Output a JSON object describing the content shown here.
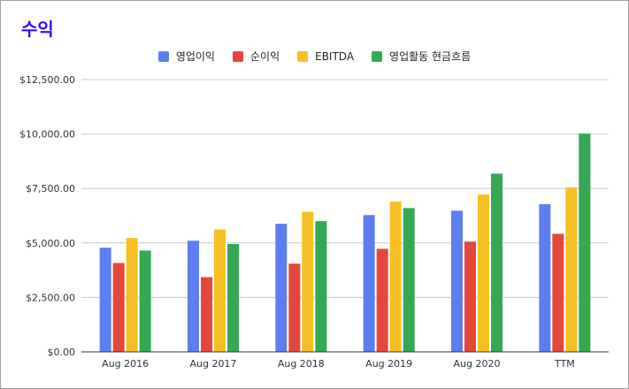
{
  "colors": {
    "title": "#3d00ff",
    "series": [
      "#5b7ff0",
      "#e5473b",
      "#f5c023",
      "#34a853"
    ],
    "grid": "#cccccc",
    "axis": "#333333"
  },
  "chart_data": {
    "type": "bar",
    "title": "수익",
    "categories": [
      "Aug 2016",
      "Aug 2017",
      "Aug 2018",
      "Aug 2019",
      "Aug 2020",
      "TTM"
    ],
    "series": [
      {
        "name": "영업이익",
        "values": [
          4780,
          5100,
          5880,
          6280,
          6480,
          6780
        ]
      },
      {
        "name": "순이익",
        "values": [
          4080,
          3430,
          4050,
          4730,
          5060,
          5420
        ]
      },
      {
        "name": "EBITDA",
        "values": [
          5230,
          5620,
          6430,
          6900,
          7220,
          7550
        ]
      },
      {
        "name": "영업활동 현금흐름",
        "values": [
          4650,
          4950,
          6000,
          6600,
          8180,
          10020
        ]
      }
    ],
    "ylim": [
      0,
      12500
    ],
    "y_ticks": [
      0,
      2500,
      5000,
      7500,
      10000,
      12500
    ],
    "y_tick_labels": [
      "$0.00",
      "$2,500.00",
      "$5,000.00",
      "$7,500.00",
      "$10,000.00",
      "$12,500.00"
    ],
    "grid": true,
    "legend_position": "top-center",
    "xlabel": "",
    "ylabel": ""
  }
}
